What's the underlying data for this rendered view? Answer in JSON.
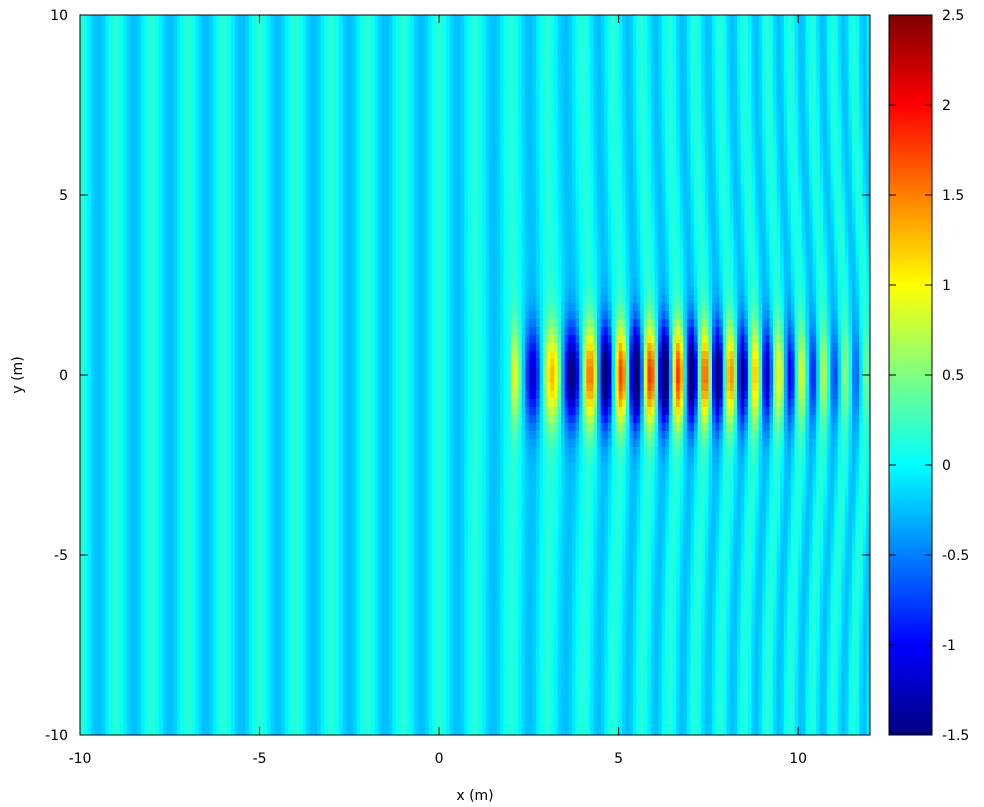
{
  "chart_data": {
    "type": "heatmap",
    "title": "",
    "xlabel": "x (m)",
    "ylabel": "y (m)",
    "xlim": [
      -10,
      12
    ],
    "ylim": [
      -10,
      10
    ],
    "x_ticks": [
      -10,
      -5,
      0,
      5,
      10
    ],
    "x_tick_labels": [
      "-10",
      "-5",
      "0",
      "5",
      "10"
    ],
    "y_ticks": [
      -10,
      -5,
      0,
      5,
      10
    ],
    "y_tick_labels": [
      "-10",
      "-5",
      "0",
      "5",
      "10"
    ],
    "colorbar": {
      "range": [
        -1.5,
        2.5
      ],
      "ticks": [
        -1.5,
        -1,
        -0.5,
        0,
        0.5,
        1,
        1.5,
        2,
        2.5
      ],
      "tick_labels": [
        "-1.5",
        "-1",
        "-0.5",
        "0",
        "0.5",
        "1",
        "1.5",
        "2",
        "2.5"
      ],
      "colormap": "jet",
      "colors": [
        "#00007f",
        "#0000ff",
        "#007fff",
        "#00ffff",
        "#7fff7f",
        "#ffff00",
        "#ff7f00",
        "#ff0000",
        "#7f0000"
      ]
    },
    "field": {
      "description_free": true,
      "incident_wave_wavelength_m": 1.0,
      "incident_amplitude": 0.5,
      "focus_x_m": 6.0,
      "focus_y_m": 0.0,
      "focus_peak_value": 2.2,
      "background_value": -0.3
    },
    "grid": false,
    "legend": "colorbar-right"
  }
}
